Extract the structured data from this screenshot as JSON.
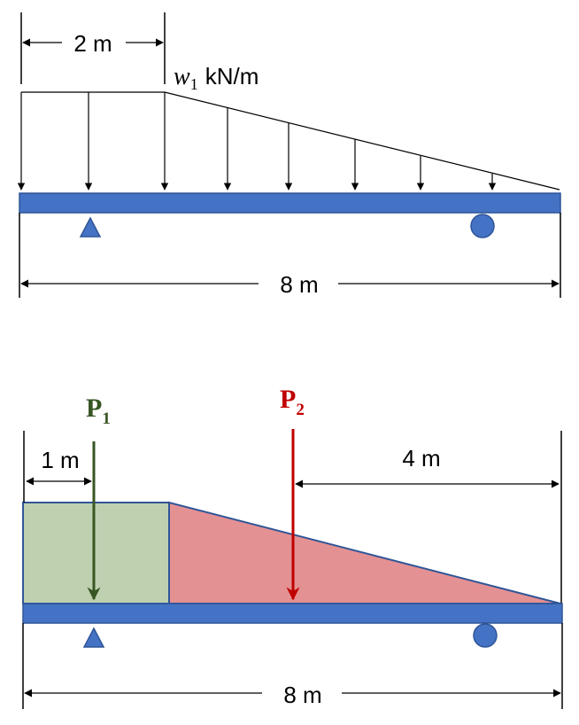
{
  "colors": {
    "beam": "#4472C4",
    "beam_edge": "#2F5597",
    "support": "#4472C4",
    "rect_fill": "#BFD0B1",
    "tri_fill": "#E49193",
    "p1": "#375623",
    "p2": "#C00000"
  },
  "top": {
    "dim_span": "2 m",
    "load_symbol": "w",
    "load_subscript": "1",
    "load_unit": "kN/m",
    "beam_length": "8 m"
  },
  "bottom": {
    "p1_letter": "P",
    "p1_sub": "1",
    "p2_letter": "P",
    "p2_sub": "2",
    "dim_left": "1 m",
    "dim_right": "4 m",
    "beam_length": "8 m"
  }
}
